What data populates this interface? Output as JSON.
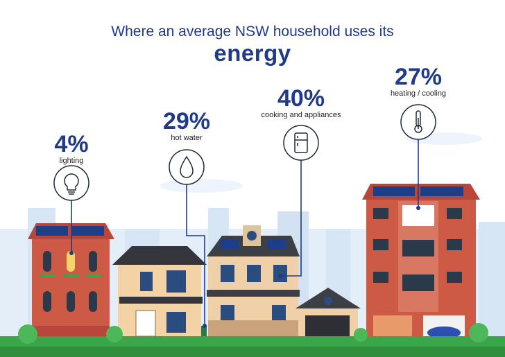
{
  "title": {
    "line1": "Where an average NSW household uses its",
    "line2": "energy"
  },
  "stats": [
    {
      "value": "4%",
      "label": "lighting",
      "icon": "lightbulb-icon"
    },
    {
      "value": "29%",
      "label": "hot water",
      "icon": "water-drop-icon"
    },
    {
      "value": "40%",
      "label": "cooking and appliances",
      "icon": "fridge-icon"
    },
    {
      "value": "27%",
      "label": "heating / cooling",
      "icon": "thermometer-icon"
    }
  ],
  "colors": {
    "title": "#1f3a8a",
    "accent": "#1a74c4",
    "sky": "#dbe9f6",
    "brick": "#cc5a45",
    "grass": "#3aa64a"
  }
}
